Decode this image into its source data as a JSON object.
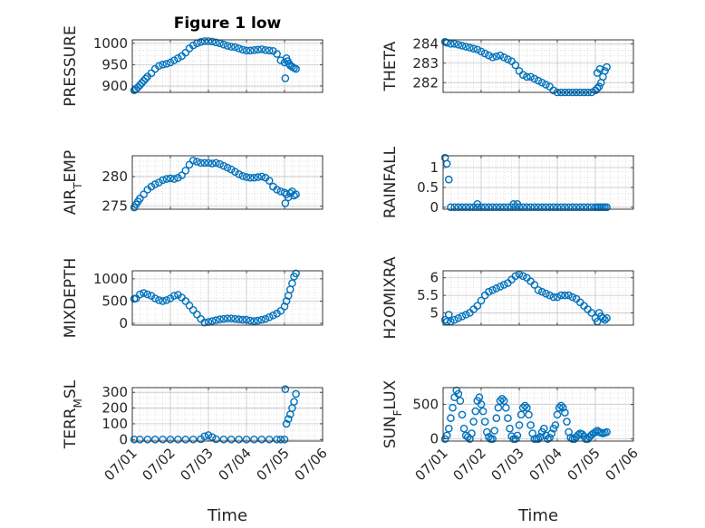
{
  "figure": {
    "title": "Figure 1 low",
    "marker_color": "#0072BD",
    "grid": "on (major and minor)",
    "xlabel": "Time"
  },
  "chart_data": [
    {
      "type": "scatter",
      "ylabel": "PRESSURE",
      "xlim": [
        0,
        5
      ],
      "ylim": [
        885,
        1008
      ],
      "yticks": [
        900,
        950,
        1000
      ],
      "xticks": [
        "07/01",
        "07/02",
        "07/03",
        "07/04",
        "07/05",
        "07/06"
      ],
      "x": [
        0.05,
        0.1,
        0.15,
        0.2,
        0.25,
        0.3,
        0.35,
        0.4,
        0.5,
        0.6,
        0.7,
        0.8,
        0.9,
        1.0,
        1.1,
        1.2,
        1.3,
        1.4,
        1.5,
        1.6,
        1.7,
        1.8,
        1.9,
        2.0,
        2.1,
        2.2,
        2.3,
        2.4,
        2.5,
        2.6,
        2.7,
        2.8,
        2.9,
        3.0,
        3.1,
        3.2,
        3.3,
        3.4,
        3.5,
        3.6,
        3.7,
        3.8,
        3.9,
        4.0,
        4.02,
        4.05,
        4.08,
        4.12,
        4.15,
        4.2,
        4.25,
        4.3
      ],
      "y": [
        890,
        893,
        897,
        902,
        907,
        912,
        917,
        922,
        930,
        940,
        947,
        950,
        952,
        955,
        960,
        965,
        970,
        978,
        988,
        995,
        1000,
        1003,
        1005,
        1005,
        1004,
        1002,
        1000,
        997,
        994,
        992,
        991,
        988,
        985,
        983,
        983,
        984,
        985,
        986,
        984,
        983,
        982,
        975,
        960,
        955,
        918,
        965,
        958,
        952,
        948,
        945,
        942,
        940
      ]
    },
    {
      "type": "scatter",
      "ylabel": "THETA",
      "xlim": [
        0,
        5
      ],
      "ylim": [
        281.5,
        284.2
      ],
      "yticks": [
        282,
        283,
        284
      ],
      "xticks": [
        "07/01",
        "07/02",
        "07/03",
        "07/04",
        "07/05",
        "07/06"
      ],
      "x": [
        0.05,
        0.1,
        0.2,
        0.3,
        0.4,
        0.5,
        0.6,
        0.7,
        0.8,
        0.9,
        1.0,
        1.1,
        1.2,
        1.3,
        1.4,
        1.5,
        1.6,
        1.7,
        1.8,
        1.9,
        2.0,
        2.1,
        2.2,
        2.3,
        2.4,
        2.5,
        2.6,
        2.7,
        2.8,
        2.9,
        3.0,
        3.1,
        3.2,
        3.3,
        3.4,
        3.5,
        3.6,
        3.7,
        3.8,
        3.9,
        4.0,
        4.05,
        4.1,
        4.15,
        4.2,
        4.25,
        4.3,
        4.05,
        4.12
      ],
      "y": [
        284.1,
        284.05,
        284.0,
        284.0,
        283.95,
        283.9,
        283.85,
        283.8,
        283.75,
        283.7,
        283.6,
        283.5,
        283.4,
        283.3,
        283.35,
        283.4,
        283.3,
        283.2,
        283.1,
        282.9,
        282.6,
        282.4,
        282.3,
        282.3,
        282.2,
        282.1,
        282.0,
        281.9,
        281.8,
        281.6,
        281.5,
        281.5,
        281.5,
        281.5,
        281.5,
        281.5,
        281.5,
        281.5,
        281.5,
        281.5,
        281.6,
        281.7,
        281.8,
        282.0,
        282.3,
        282.6,
        282.8,
        282.5,
        282.7
      ]
    },
    {
      "type": "scatter",
      "ylabel": "AIR_TEMP",
      "xlim": [
        0,
        5
      ],
      "ylim": [
        274.5,
        283.5
      ],
      "yticks": [
        275,
        280
      ],
      "xticks": [
        "07/01",
        "07/02",
        "07/03",
        "07/04",
        "07/05",
        "07/06"
      ],
      "x": [
        0.05,
        0.1,
        0.15,
        0.2,
        0.3,
        0.4,
        0.5,
        0.6,
        0.7,
        0.8,
        0.9,
        1.0,
        1.1,
        1.2,
        1.3,
        1.4,
        1.5,
        1.6,
        1.7,
        1.8,
        1.9,
        2.0,
        2.1,
        2.2,
        2.3,
        2.4,
        2.5,
        2.6,
        2.7,
        2.8,
        2.9,
        3.0,
        3.1,
        3.2,
        3.3,
        3.4,
        3.5,
        3.6,
        3.7,
        3.8,
        3.9,
        4.0,
        4.05,
        4.1,
        4.15,
        4.2,
        4.25,
        4.3,
        4.02
      ],
      "y": [
        274.8,
        275.3,
        275.8,
        276.3,
        277.0,
        277.8,
        278.3,
        278.7,
        279.0,
        279.4,
        279.6,
        279.7,
        279.6,
        279.8,
        280.2,
        281.0,
        282.0,
        282.7,
        282.5,
        282.3,
        282.3,
        282.3,
        282.2,
        282.3,
        282.1,
        281.8,
        281.5,
        281.2,
        280.8,
        280.4,
        280.1,
        279.9,
        279.8,
        279.8,
        279.9,
        280.0,
        279.8,
        279.3,
        278.3,
        277.8,
        277.5,
        277.3,
        277.0,
        276.5,
        277.2,
        277.5,
        276.8,
        277.0,
        275.5
      ]
    },
    {
      "type": "scatter",
      "ylabel": "RAINFALL",
      "xlim": [
        0,
        5
      ],
      "ylim": [
        -0.05,
        1.3
      ],
      "yticks": [
        0,
        0.5,
        1
      ],
      "xticks": [
        "07/01",
        "07/02",
        "07/03",
        "07/04",
        "07/05",
        "07/06"
      ],
      "x": [
        0.05,
        0.1,
        0.15,
        0.2,
        0.3,
        0.4,
        0.5,
        0.6,
        0.7,
        0.8,
        0.9,
        1.0,
        1.1,
        1.2,
        1.3,
        1.4,
        1.5,
        1.6,
        1.7,
        1.8,
        1.9,
        2.0,
        2.1,
        2.2,
        2.3,
        2.4,
        2.5,
        2.6,
        2.7,
        2.8,
        2.9,
        3.0,
        3.1,
        3.2,
        3.3,
        3.4,
        3.5,
        3.6,
        3.7,
        3.8,
        3.9,
        4.0,
        4.05,
        4.1,
        4.15,
        4.2,
        4.25,
        4.3,
        0.9,
        1.85,
        1.95
      ],
      "y": [
        1.25,
        1.1,
        0.7,
        0,
        0,
        0,
        0,
        0,
        0,
        0,
        0,
        0,
        0,
        0,
        0,
        0,
        0,
        0,
        0,
        0,
        0,
        0,
        0,
        0,
        0,
        0,
        0,
        0,
        0,
        0,
        0,
        0,
        0,
        0,
        0,
        0,
        0,
        0,
        0,
        0,
        0,
        0,
        0,
        0,
        0,
        0,
        0,
        0,
        0.08,
        0.08,
        0.08
      ]
    },
    {
      "type": "scatter",
      "ylabel": "MIXDEPTH",
      "xlim": [
        0,
        5
      ],
      "ylim": [
        -40,
        1180
      ],
      "yticks": [
        0,
        500,
        1000
      ],
      "xticks": [
        "07/01",
        "07/02",
        "07/03",
        "07/04",
        "07/05",
        "07/06"
      ],
      "x": [
        0.05,
        0.1,
        0.2,
        0.3,
        0.4,
        0.5,
        0.6,
        0.7,
        0.8,
        0.9,
        1.0,
        1.1,
        1.2,
        1.3,
        1.4,
        1.5,
        1.6,
        1.7,
        1.8,
        1.9,
        2.0,
        2.1,
        2.2,
        2.3,
        2.4,
        2.5,
        2.6,
        2.7,
        2.8,
        2.9,
        3.0,
        3.1,
        3.2,
        3.3,
        3.4,
        3.5,
        3.6,
        3.7,
        3.8,
        3.9,
        4.0,
        4.05,
        4.1,
        4.15,
        4.2,
        4.25,
        4.3
      ],
      "y": [
        550,
        560,
        650,
        680,
        650,
        620,
        560,
        520,
        500,
        520,
        560,
        620,
        640,
        580,
        500,
        400,
        300,
        200,
        100,
        20,
        30,
        50,
        70,
        90,
        100,
        110,
        110,
        100,
        90,
        80,
        80,
        60,
        50,
        60,
        80,
        100,
        140,
        180,
        220,
        280,
        380,
        500,
        620,
        760,
        900,
        1050,
        1120
      ]
    },
    {
      "type": "scatter",
      "ylabel": "H2OMIXRA",
      "xlim": [
        0,
        5
      ],
      "ylim": [
        4.65,
        6.2
      ],
      "yticks": [
        5,
        5.5,
        6
      ],
      "xticks": [
        "07/01",
        "07/02",
        "07/03",
        "07/04",
        "07/05",
        "07/06"
      ],
      "x": [
        0.05,
        0.1,
        0.15,
        0.2,
        0.3,
        0.4,
        0.5,
        0.6,
        0.7,
        0.8,
        0.9,
        1.0,
        1.1,
        1.2,
        1.3,
        1.4,
        1.5,
        1.6,
        1.7,
        1.8,
        1.9,
        2.0,
        2.1,
        2.2,
        2.3,
        2.4,
        2.5,
        2.6,
        2.7,
        2.8,
        2.9,
        3.0,
        3.1,
        3.2,
        3.3,
        3.4,
        3.5,
        3.6,
        3.7,
        3.8,
        3.9,
        4.0,
        4.05,
        4.1,
        4.15,
        4.2,
        4.25,
        4.3
      ],
      "y": [
        4.8,
        4.75,
        4.95,
        4.75,
        4.8,
        4.85,
        4.9,
        4.95,
        5.0,
        5.1,
        5.2,
        5.35,
        5.5,
        5.6,
        5.65,
        5.7,
        5.75,
        5.8,
        5.85,
        5.95,
        6.05,
        6.1,
        6.05,
        6.0,
        5.9,
        5.8,
        5.65,
        5.6,
        5.55,
        5.5,
        5.45,
        5.45,
        5.5,
        5.5,
        5.5,
        5.45,
        5.4,
        5.3,
        5.2,
        5.1,
        5.0,
        4.85,
        4.75,
        5.0,
        4.9,
        4.85,
        4.8,
        4.85
      ]
    },
    {
      "type": "scatter",
      "ylabel": "TERR_MSL",
      "xlim": [
        0,
        5
      ],
      "ylim": [
        -10,
        330
      ],
      "yticks": [
        0,
        100,
        200,
        300
      ],
      "xticks": [
        "07/01",
        "07/02",
        "07/03",
        "07/04",
        "07/05",
        "07/06"
      ],
      "x": [
        0.05,
        0.2,
        0.4,
        0.6,
        0.8,
        1.0,
        1.2,
        1.4,
        1.6,
        1.8,
        1.9,
        2.0,
        2.1,
        2.2,
        2.4,
        2.6,
        2.8,
        3.0,
        3.2,
        3.4,
        3.6,
        3.8,
        3.9,
        4.0,
        4.02,
        4.05,
        4.1,
        4.15,
        4.2,
        4.25,
        4.3
      ],
      "y": [
        0,
        0,
        0,
        0,
        0,
        0,
        0,
        0,
        0,
        2,
        20,
        28,
        15,
        2,
        0,
        0,
        0,
        0,
        0,
        0,
        0,
        0,
        0,
        0,
        320,
        100,
        130,
        160,
        200,
        240,
        290
      ]
    },
    {
      "type": "scatter",
      "ylabel": "SUN_FLUX",
      "xlim": [
        0,
        5
      ],
      "ylim": [
        -30,
        740
      ],
      "yticks": [
        0,
        500
      ],
      "xticks": [
        "07/01",
        "07/02",
        "07/03",
        "07/04",
        "07/05",
        "07/06"
      ],
      "x": [
        0.05,
        0.1,
        0.15,
        0.2,
        0.25,
        0.3,
        0.35,
        0.4,
        0.45,
        0.5,
        0.55,
        0.6,
        0.65,
        0.7,
        0.75,
        0.8,
        0.85,
        0.9,
        0.95,
        1.0,
        1.05,
        1.1,
        1.15,
        1.2,
        1.25,
        1.3,
        1.35,
        1.4,
        1.45,
        1.5,
        1.55,
        1.6,
        1.65,
        1.7,
        1.75,
        1.8,
        1.85,
        1.9,
        1.95,
        2.0,
        2.05,
        2.1,
        2.15,
        2.2,
        2.25,
        2.3,
        2.35,
        2.4,
        2.45,
        2.5,
        2.55,
        2.6,
        2.65,
        2.7,
        2.75,
        2.8,
        2.85,
        2.9,
        2.95,
        3.0,
        3.05,
        3.1,
        3.15,
        3.2,
        3.25,
        3.3,
        3.35,
        3.4,
        3.45,
        3.5,
        3.55,
        3.6,
        3.65,
        3.7,
        3.75,
        3.8,
        3.85,
        3.9,
        3.95,
        4.0,
        4.05,
        4.1,
        4.15,
        4.2,
        4.25,
        4.3
      ],
      "y": [
        0,
        50,
        150,
        300,
        450,
        600,
        700,
        650,
        550,
        350,
        150,
        50,
        30,
        0,
        80,
        250,
        400,
        550,
        600,
        500,
        400,
        250,
        100,
        30,
        0,
        0,
        120,
        300,
        450,
        550,
        580,
        550,
        450,
        300,
        150,
        40,
        0,
        0,
        50,
        200,
        350,
        450,
        480,
        450,
        350,
        200,
        80,
        0,
        0,
        0,
        30,
        100,
        150,
        50,
        0,
        20,
        80,
        150,
        200,
        350,
        450,
        480,
        450,
        380,
        250,
        100,
        20,
        0,
        0,
        30,
        60,
        80,
        70,
        40,
        0,
        0,
        30,
        60,
        80,
        100,
        120,
        100,
        90,
        80,
        90,
        100
      ]
    }
  ]
}
